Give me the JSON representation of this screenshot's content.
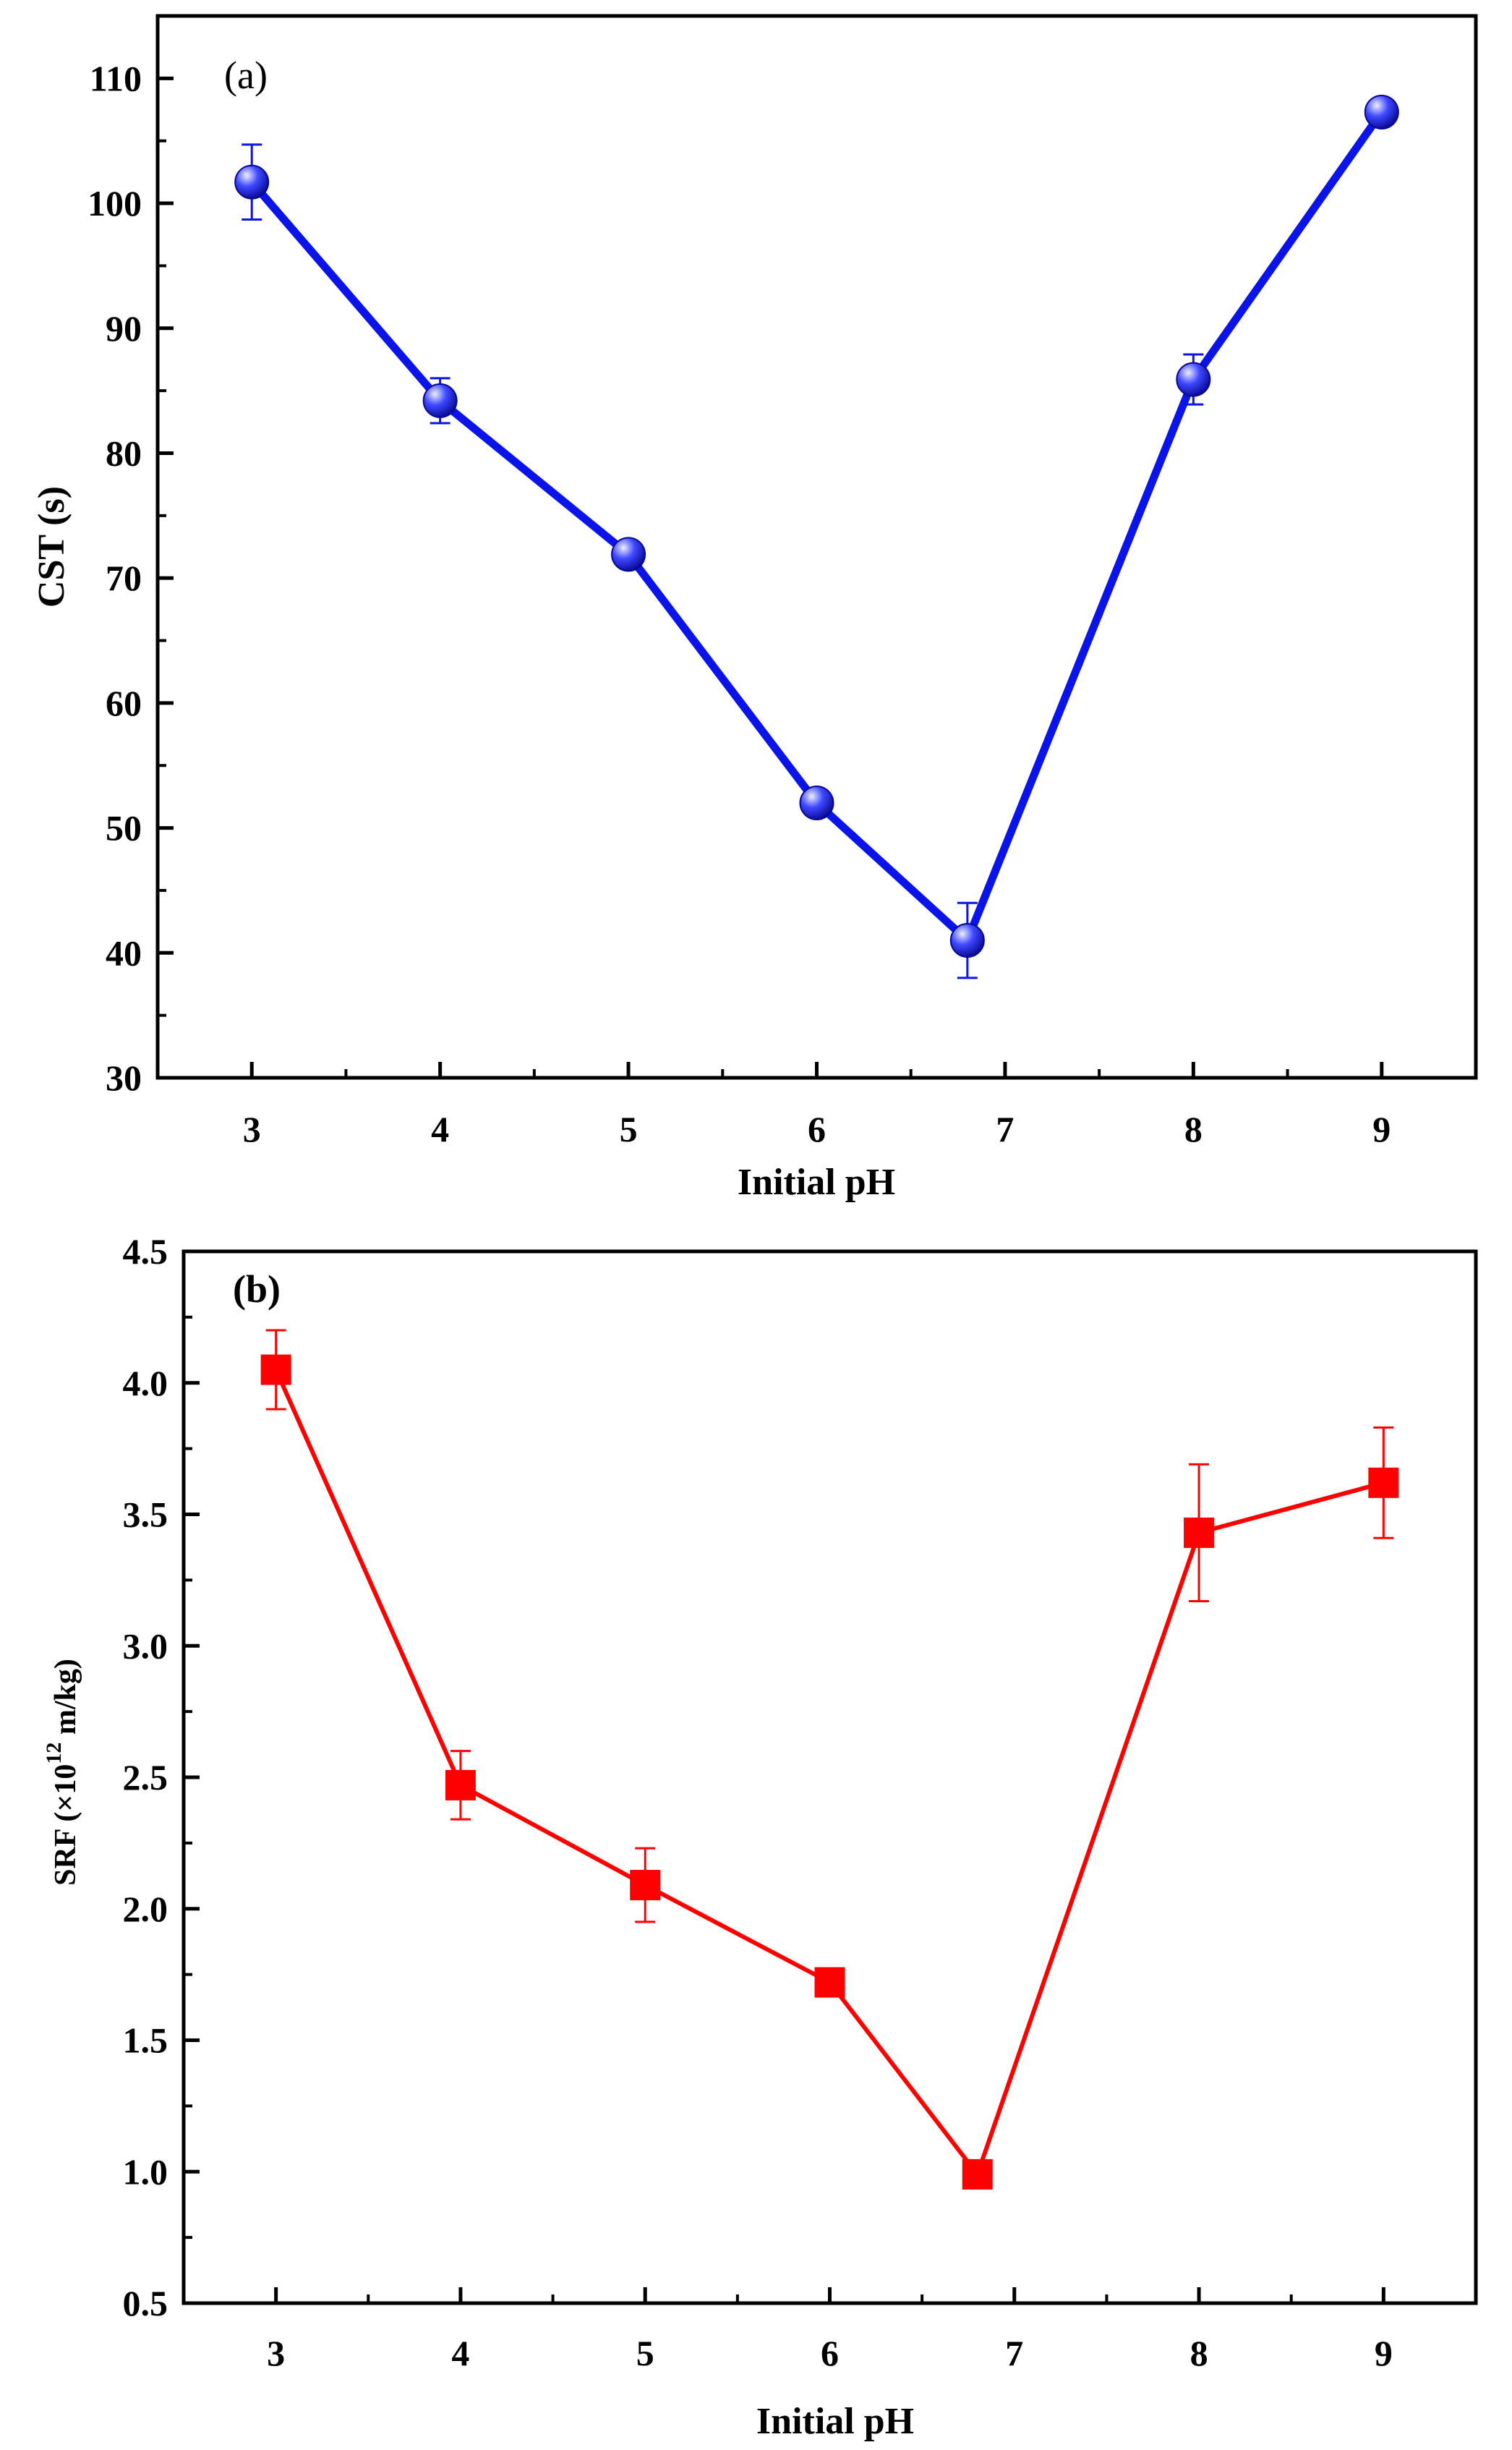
{
  "chart_data": [
    {
      "type": "line",
      "panel_label": "(a)",
      "title": "",
      "xlabel": "Initial pH",
      "ylabel": "CST (s)",
      "xlim": [
        2.5,
        9.5
      ],
      "ylim": [
        30,
        115
      ],
      "xticks": [
        3,
        4,
        5,
        6,
        7,
        8,
        9
      ],
      "xtick_labels": [
        "3",
        "4",
        "5",
        "6",
        "7",
        "8",
        "9"
      ],
      "yticks": [
        30,
        40,
        50,
        60,
        70,
        80,
        90,
        100,
        110
      ],
      "ytick_labels": [
        "30",
        "40",
        "50",
        "60",
        "70",
        "80",
        "90",
        "100",
        "110"
      ],
      "grid": false,
      "series": [
        {
          "name": "CST",
          "color": "#0a14ea",
          "marker": "sphere",
          "x": [
            3,
            4,
            5,
            6,
            6.8,
            8,
            9
          ],
          "y": [
            101.7,
            84.2,
            71.9,
            52,
            41,
            85.9,
            107.3
          ],
          "err": [
            3,
            1.8,
            0,
            0,
            3,
            2,
            0
          ]
        }
      ]
    },
    {
      "type": "line",
      "panel_label": "(b)",
      "title": "",
      "xlabel": "Initial pH",
      "ylabel_main": "SRF (×10",
      "ylabel_sup": "12",
      "ylabel_tail": " m/kg)",
      "xlim": [
        2.5,
        9.5
      ],
      "ylim": [
        0.5,
        4.5
      ],
      "xticks": [
        3,
        4,
        5,
        6,
        7,
        8,
        9
      ],
      "xtick_labels": [
        "3",
        "4",
        "5",
        "6",
        "7",
        "8",
        "9"
      ],
      "yticks": [
        0.5,
        1.0,
        1.5,
        2.0,
        2.5,
        3.0,
        3.5,
        4.0,
        4.5
      ],
      "ytick_labels": [
        "0.5",
        "1.0",
        "1.5",
        "2.0",
        "2.5",
        "3.0",
        "3.5",
        "4.0",
        "4.5"
      ],
      "grid": false,
      "series": [
        {
          "name": "SRF",
          "color": "#ff0000",
          "marker": "square",
          "x": [
            3,
            4,
            5,
            6,
            6.8,
            8,
            9
          ],
          "y": [
            4.05,
            2.47,
            2.09,
            1.72,
            0.99,
            3.43,
            3.62
          ],
          "err": [
            0.15,
            0.13,
            0.14,
            0,
            0,
            0.26,
            0.21
          ]
        }
      ]
    }
  ]
}
